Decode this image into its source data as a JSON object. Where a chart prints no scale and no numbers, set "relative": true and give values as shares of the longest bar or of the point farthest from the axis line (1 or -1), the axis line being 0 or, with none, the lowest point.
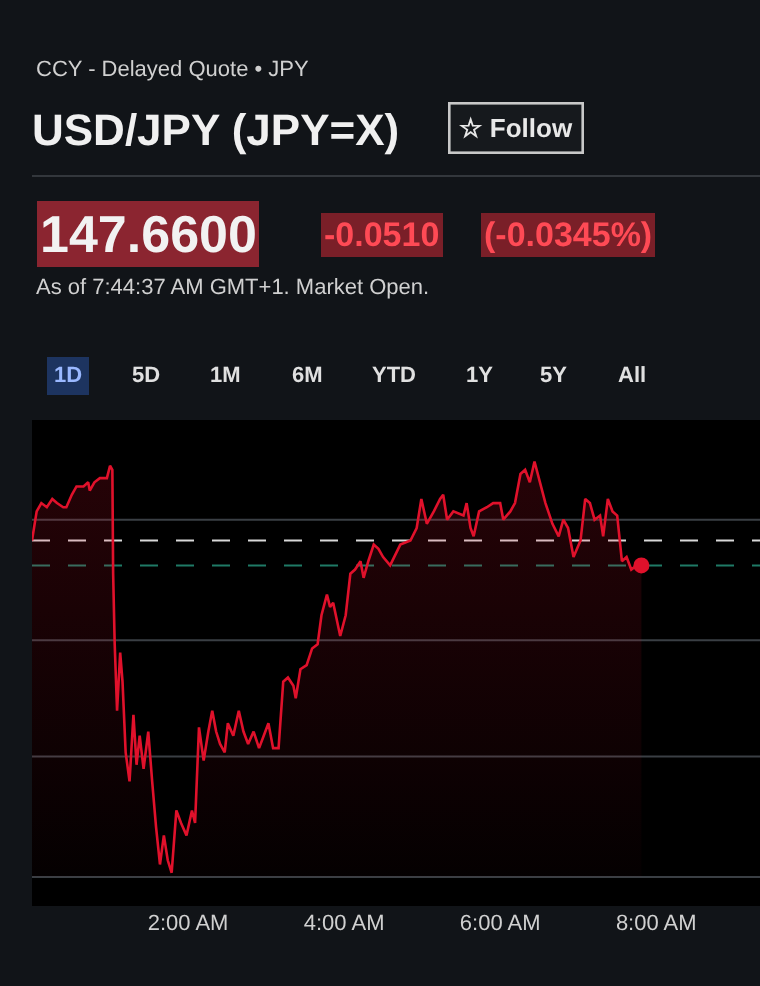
{
  "chart_data": {
    "type": "area",
    "relative": true,
    "title": "USD/JPY (JPY=X)",
    "subtitle": "CCY - Delayed Quote • JPY",
    "annotations": [
      "☆ Follow",
      "147.6600",
      "-0.0510",
      "(-0.0345%)",
      "As of 7:44:37 AM GMT+1. Market Open.",
      "1D",
      "5D",
      "1M",
      "6M",
      "YTD",
      "1Y",
      "5Y",
      "All"
    ],
    "xlim": [
      0,
      9.33
    ],
    "xticks": [
      {
        "value": 2,
        "label": "2:00 AM"
      },
      {
        "value": 4,
        "label": "4:00 AM"
      },
      {
        "value": 6,
        "label": "6:00 AM"
      },
      {
        "value": 8,
        "label": "8:00 AM"
      }
    ],
    "grid": false,
    "ref_lines": [
      {
        "axis": "y",
        "value": 0.86,
        "color": "#3a3f44",
        "line_style": "solid"
      },
      {
        "axis": "y",
        "value": 0.57,
        "color": "#3a3f44",
        "line_style": "solid"
      },
      {
        "axis": "y",
        "value": 0.29,
        "color": "#3a3f44",
        "line_style": "solid"
      },
      {
        "axis": "y",
        "value": 0.0,
        "color": "#3a3f44",
        "line_style": "solid"
      },
      {
        "axis": "y",
        "value": 0.81,
        "color": "#d8d8d8",
        "line_style": "dashed"
      },
      {
        "axis": "y",
        "value": 0.75,
        "color": "#1f7a66",
        "line_style": "dashed"
      }
    ],
    "series": [
      {
        "color": "#e0112b",
        "marker": "none",
        "x": [
          0.0,
          0.06,
          0.12,
          0.19,
          0.26,
          0.32,
          0.4,
          0.44,
          0.51,
          0.57,
          0.66,
          0.72,
          0.74,
          0.8,
          0.87,
          0.96,
          1.0,
          1.03,
          1.04,
          1.06,
          1.09,
          1.13,
          1.16,
          1.2,
          1.25,
          1.3,
          1.34,
          1.38,
          1.43,
          1.49,
          1.54,
          1.59,
          1.64,
          1.69,
          1.74,
          1.79,
          1.85,
          1.91,
          1.98,
          2.05,
          2.09,
          2.14,
          2.2,
          2.26,
          2.31,
          2.36,
          2.41,
          2.47,
          2.51,
          2.58,
          2.65,
          2.71,
          2.77,
          2.84,
          2.91,
          2.97,
          3.03,
          3.09,
          3.16,
          3.22,
          3.28,
          3.35,
          3.38,
          3.44,
          3.52,
          3.59,
          3.66,
          3.71,
          3.78,
          3.82,
          3.86,
          3.95,
          4.02,
          4.08,
          4.14,
          4.21,
          4.25,
          4.31,
          4.38,
          4.44,
          4.5,
          4.59,
          4.72,
          4.85,
          4.93,
          4.99,
          5.06,
          5.15,
          5.23,
          5.27,
          5.32,
          5.4,
          5.53,
          5.57,
          5.62,
          5.66,
          5.73,
          5.83,
          5.91,
          6.0,
          6.04,
          6.13,
          6.19,
          6.26,
          6.32,
          6.38,
          6.44,
          6.51,
          6.58,
          6.67,
          6.75,
          6.81,
          6.87,
          6.94,
          7.03,
          7.09,
          7.15,
          7.21,
          7.28,
          7.32,
          7.38,
          7.44,
          7.5,
          7.56,
          7.62,
          7.68,
          7.75,
          7.81
        ],
        "values": [
          0.81,
          0.88,
          0.9,
          0.89,
          0.91,
          0.9,
          0.89,
          0.89,
          0.92,
          0.94,
          0.94,
          0.95,
          0.93,
          0.95,
          0.96,
          0.96,
          0.99,
          0.98,
          0.73,
          0.56,
          0.4,
          0.54,
          0.47,
          0.3,
          0.23,
          0.39,
          0.27,
          0.34,
          0.26,
          0.35,
          0.23,
          0.12,
          0.03,
          0.1,
          0.04,
          0.01,
          0.16,
          0.13,
          0.1,
          0.16,
          0.13,
          0.36,
          0.28,
          0.35,
          0.4,
          0.35,
          0.32,
          0.3,
          0.37,
          0.34,
          0.4,
          0.35,
          0.32,
          0.35,
          0.31,
          0.34,
          0.37,
          0.31,
          0.31,
          0.47,
          0.48,
          0.46,
          0.43,
          0.5,
          0.51,
          0.55,
          0.56,
          0.63,
          0.68,
          0.65,
          0.66,
          0.58,
          0.63,
          0.73,
          0.74,
          0.76,
          0.72,
          0.76,
          0.8,
          0.79,
          0.77,
          0.75,
          0.8,
          0.81,
          0.84,
          0.91,
          0.85,
          0.88,
          0.91,
          0.92,
          0.86,
          0.88,
          0.87,
          0.9,
          0.84,
          0.82,
          0.88,
          0.89,
          0.9,
          0.9,
          0.86,
          0.88,
          0.9,
          0.97,
          0.98,
          0.95,
          1.0,
          0.95,
          0.9,
          0.85,
          0.82,
          0.86,
          0.84,
          0.77,
          0.81,
          0.91,
          0.9,
          0.86,
          0.87,
          0.82,
          0.91,
          0.88,
          0.87,
          0.76,
          0.77,
          0.74,
          0.75,
          0.75
        ]
      },
      {
        "type": "scatter",
        "color": "#e0112b",
        "marker": "circle",
        "x": [
          7.81
        ],
        "values": [
          0.75
        ]
      }
    ]
  }
}
